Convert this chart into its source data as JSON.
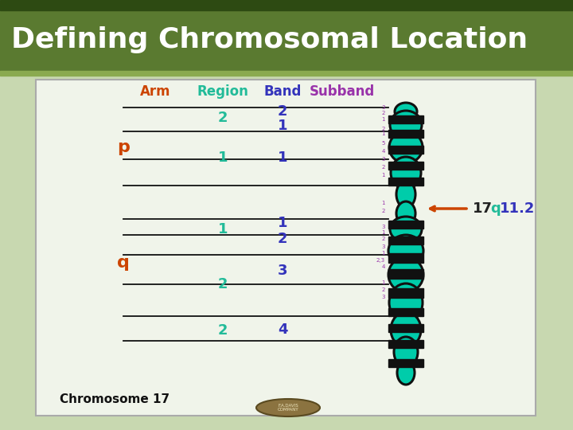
{
  "title": "Defining Chromosomal Location",
  "title_bg": "#5a7a30",
  "title_color": "#ffffff",
  "slide_bg": "#c8d8b0",
  "content_bg": "#f2f5ee",
  "header_labels": [
    "Arm",
    "Region",
    "Band",
    "Subband"
  ],
  "header_colors": [
    "#cc4400",
    "#22bb99",
    "#3333bb",
    "#9933aa"
  ],
  "arm_color": "#cc4400",
  "region_color": "#22bb99",
  "band_color": "#3333bb",
  "subband_color": "#9933aa",
  "chromosome_color": "#00ccaa",
  "chromosome_outline": "#111111",
  "arrow_color": "#cc4400",
  "footer_text": "Chromosome 17",
  "footer_color": "#111111",
  "anno_17_color": "#222222",
  "anno_q_color": "#22bb99",
  "anno_num_color": "#3333bb"
}
